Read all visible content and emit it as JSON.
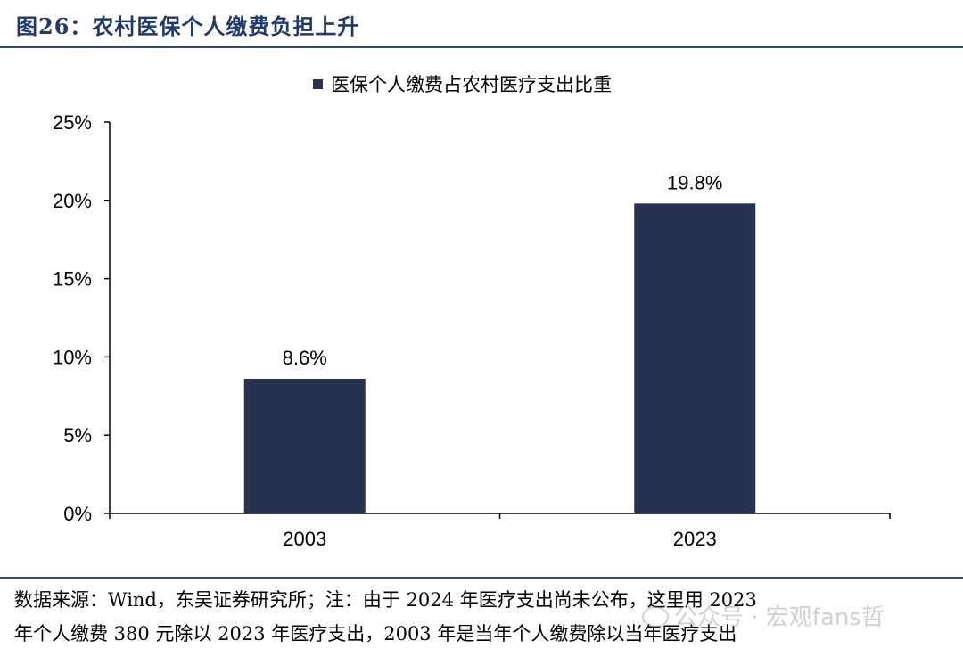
{
  "figure": {
    "title": "图26：农村医保个人缴费负担上升"
  },
  "chart_data": {
    "type": "bar",
    "categories": [
      "2003",
      "2023"
    ],
    "series": [
      {
        "name": "医保个人缴费占农村医疗支出比重",
        "values": [
          8.6,
          19.8
        ],
        "color": "#26324f"
      }
    ],
    "data_labels": [
      "8.6%",
      "19.8%"
    ],
    "ylim": [
      0,
      25
    ],
    "yticks": [
      0,
      5,
      10,
      15,
      20,
      25
    ],
    "ytick_labels": [
      "0%",
      "5%",
      "10%",
      "15%",
      "20%",
      "25%"
    ],
    "xlabel": "",
    "ylabel": "",
    "legend_position": "top-center",
    "grid": false
  },
  "source": {
    "line1": "数据来源：Wind，东吴证券研究所；注：由于 2024 年医疗支出尚未公布，这里用 2023",
    "line2": "年个人缴费 380 元除以 2023 年医疗支出，2003 年是当年个人缴费除以当年医疗支出"
  },
  "watermark": {
    "icon": "wechat-icon",
    "text": "公众号 · 宏观fans哲"
  }
}
